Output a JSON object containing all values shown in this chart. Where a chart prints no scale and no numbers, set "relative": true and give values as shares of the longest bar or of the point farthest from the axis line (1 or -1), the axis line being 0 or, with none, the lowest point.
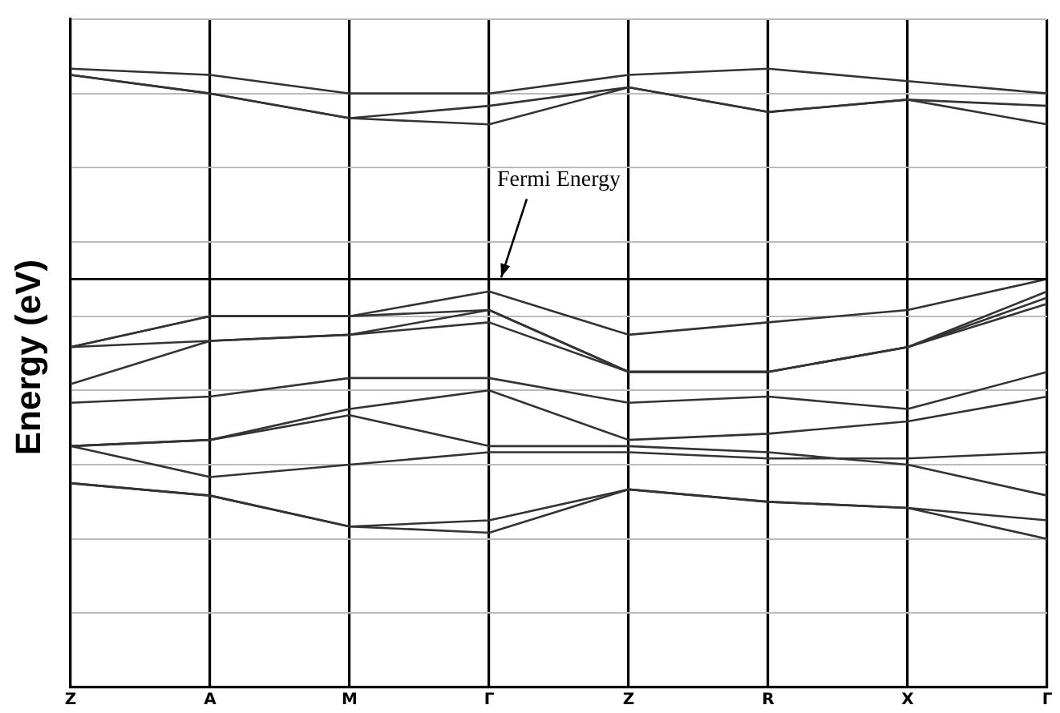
{
  "chart_data": {
    "type": "line",
    "ylabel": "Energy (eV)",
    "relative": true,
    "grid": true,
    "legend": false,
    "marker": "none",
    "line_style": "solid",
    "categories": [
      "Z",
      "A",
      "M",
      "Γ",
      "Z",
      "R",
      "X",
      "Γ"
    ],
    "series": [
      {
        "color": "#333333",
        "values": [
          1.0,
          0.99,
          0.96,
          0.96,
          0.99,
          1.0,
          0.98,
          0.96
        ]
      },
      {
        "color": "#333333",
        "values": [
          0.99,
          0.96,
          0.92,
          0.91,
          0.97,
          0.93,
          0.95,
          0.91
        ]
      },
      {
        "color": "#333333",
        "values": [
          0.99,
          0.96,
          0.92,
          0.94,
          0.97,
          0.93,
          0.95,
          0.94
        ]
      },
      {
        "color": "#333333",
        "values": [
          0.55,
          0.6,
          0.6,
          0.64,
          0.57,
          0.59,
          0.61,
          0.66
        ]
      },
      {
        "color": "#333333",
        "values": [
          0.55,
          0.6,
          0.6,
          0.61,
          0.51,
          0.51,
          0.55,
          0.64
        ]
      },
      {
        "color": "#333333",
        "values": [
          0.55,
          0.56,
          0.57,
          0.61,
          0.51,
          0.51,
          0.55,
          0.63
        ]
      },
      {
        "color": "#333333",
        "values": [
          0.49,
          0.56,
          0.57,
          0.59,
          0.51,
          0.51,
          0.55,
          0.62
        ]
      },
      {
        "color": "#333333",
        "values": [
          0.46,
          0.47,
          0.5,
          0.5,
          0.46,
          0.47,
          0.45,
          0.51
        ]
      },
      {
        "color": "#333333",
        "values": [
          0.39,
          0.4,
          0.45,
          0.48,
          0.4,
          0.41,
          0.43,
          0.47
        ]
      },
      {
        "color": "#333333",
        "values": [
          0.39,
          0.34,
          0.36,
          0.38,
          0.38,
          0.37,
          0.37,
          0.38
        ]
      },
      {
        "color": "#333333",
        "values": [
          0.39,
          0.4,
          0.44,
          0.39,
          0.39,
          0.38,
          0.36,
          0.31
        ]
      },
      {
        "color": "#333333",
        "values": [
          0.33,
          0.31,
          0.26,
          0.25,
          0.32,
          0.3,
          0.29,
          0.24
        ]
      },
      {
        "color": "#333333",
        "values": [
          0.33,
          0.31,
          0.26,
          0.27,
          0.32,
          0.3,
          0.29,
          0.27
        ]
      }
    ],
    "ref_lines": [
      {
        "axis": "y",
        "value": 0.66,
        "label": "Fermi Energy",
        "color": "#000000"
      }
    ]
  }
}
